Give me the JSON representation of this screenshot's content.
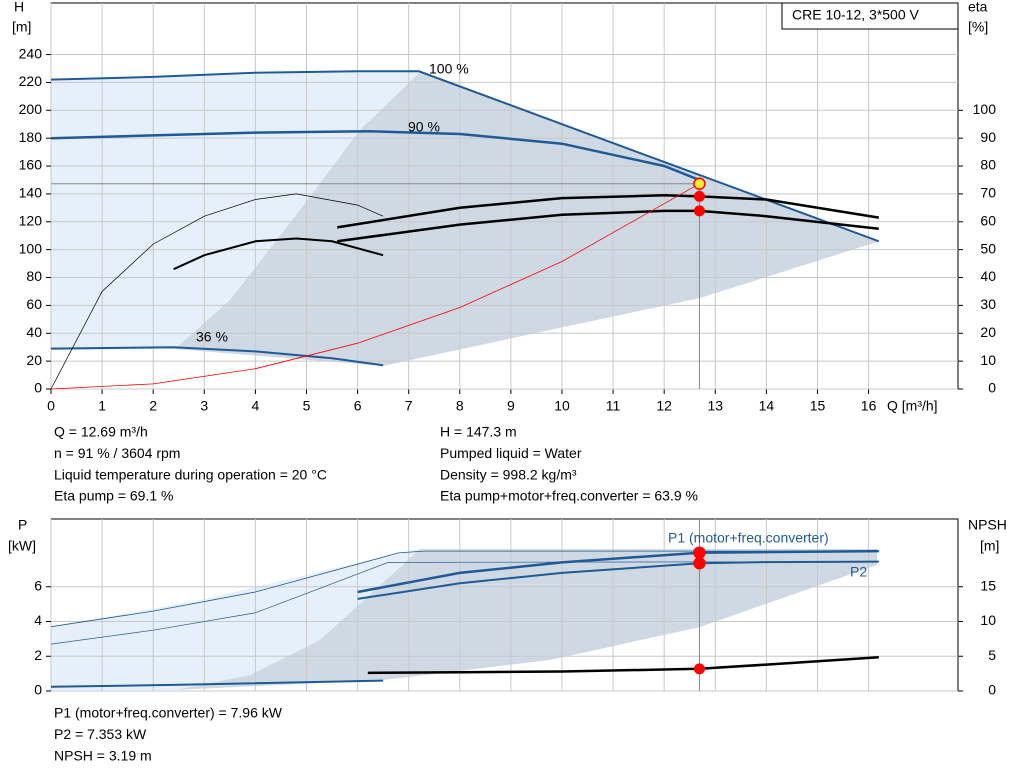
{
  "chart_data": [
    {
      "type": "line",
      "title": "CRE 10-12, 3*500 V",
      "y_label": "H",
      "y_unit": "[m]",
      "y2_label": "eta",
      "y2_unit": "[%]",
      "x_label": "Q [m³/h]",
      "xlim": [
        0,
        17.75
      ],
      "ylim": [
        0,
        277
      ],
      "y2lim": [
        0,
        138.5
      ],
      "xticks": [
        0,
        1,
        2,
        3,
        4,
        5,
        6,
        7,
        8,
        9,
        10,
        11,
        12,
        13,
        14,
        15,
        16
      ],
      "yticks": [
        0,
        20,
        40,
        60,
        80,
        100,
        120,
        140,
        160,
        180,
        200,
        220,
        240
      ],
      "y2ticks": [
        0,
        10,
        20,
        30,
        40,
        50,
        60,
        70,
        80,
        90,
        100
      ],
      "grid": true,
      "series": [
        {
          "name": "100 %",
          "color": "#1f5a96",
          "width": 2,
          "x": [
            0,
            2,
            4,
            6,
            7.2,
            16.2
          ],
          "values": [
            222,
            224,
            227,
            228,
            228,
            106
          ]
        },
        {
          "name": "90 %",
          "color": "#1f5a96",
          "width": 2.5,
          "x": [
            0,
            2,
            4,
            6.2,
            8,
            10,
            12,
            12.69
          ],
          "values": [
            180,
            182,
            184,
            185,
            183,
            176,
            160,
            150
          ]
        },
        {
          "name": "36 %",
          "color": "#1f5a96",
          "width": 2,
          "x": [
            0,
            2.4,
            4,
            5.5,
            6.5
          ],
          "values": [
            29,
            30,
            27,
            22,
            17
          ]
        },
        {
          "color": "#000000",
          "width": 2.5,
          "axis": "y2",
          "x": [
            5.6,
            8,
            10,
            12,
            12.69,
            14,
            16.2
          ],
          "values": [
            58,
            65,
            68.5,
            69.5,
            69.1,
            68,
            61.5
          ]
        },
        {
          "color": "#000000",
          "width": 2.5,
          "axis": "y2",
          "x": [
            5.6,
            8,
            10,
            12,
            12.69,
            14,
            16.2
          ],
          "values": [
            53,
            59,
            62.5,
            63.9,
            63.9,
            62,
            57.5
          ]
        },
        {
          "color": "#000000",
          "width": 0.7,
          "axis": "y2",
          "x": [
            0,
            1,
            2,
            3,
            4,
            4.8,
            6,
            6.5
          ],
          "values": [
            0,
            35,
            52,
            62,
            68,
            70,
            66,
            62
          ]
        },
        {
          "color": "#000000",
          "width": 2,
          "axis": "y2",
          "x": [
            2.4,
            3,
            4,
            4.8,
            5.5,
            6.5
          ],
          "values": [
            43,
            48,
            53,
            54,
            53,
            48
          ]
        },
        {
          "color": "#ff0000",
          "width": 0.8,
          "x": [
            0,
            2,
            4,
            6,
            8,
            10,
            12.69
          ],
          "values": [
            0,
            3.66,
            14.6,
            32.9,
            58.5,
            91.5,
            147.3
          ]
        }
      ],
      "duty_point": {
        "x": 12.69,
        "values": [
          147.3
        ],
        "y2_values": [
          69.1,
          63.9
        ]
      },
      "annotations": [
        "Q = 12.69 m³/h",
        "n = 91 % / 3604 rpm",
        "Liquid temperature during operation = 20 °C",
        "Eta pump = 69.1 %"
      ],
      "annotations_right": [
        "H = 147.3 m",
        "Pumped liquid = Water",
        "Density = 998.2 kg/m³",
        "Eta pump+motor+freq.converter = 63.9 %"
      ]
    },
    {
      "type": "line",
      "y_label": "P",
      "y_unit": "[kW]",
      "y2_label": "NPSH",
      "y2_unit": "[m]",
      "xlim": [
        0,
        17.75
      ],
      "ylim": [
        0,
        9.9
      ],
      "y2lim": [
        0,
        24.75
      ],
      "yticks": [
        0,
        2,
        4,
        6
      ],
      "y2ticks": [
        0,
        5,
        10,
        15
      ],
      "grid": true,
      "series": [
        {
          "name": "P1 (motor+freq.converter)",
          "color": "#1f5a96",
          "width": 2.5,
          "x": [
            6,
            8,
            10,
            12.69,
            16.2
          ],
          "values": [
            5.7,
            6.8,
            7.4,
            7.96,
            8.05
          ]
        },
        {
          "color": "#1f5a96",
          "width": 0.8,
          "x": [
            0,
            2,
            4,
            6.8,
            7.3,
            16.2
          ],
          "values": [
            3.7,
            4.6,
            5.7,
            7.95,
            8.05,
            8.05
          ]
        },
        {
          "name": "P2",
          "color": "#1f5a96",
          "width": 2,
          "x": [
            6,
            8,
            10,
            12.69,
            14,
            16.2
          ],
          "values": [
            5.3,
            6.2,
            6.8,
            7.353,
            7.42,
            7.45
          ]
        },
        {
          "color": "#1f5a96",
          "width": 0.7,
          "x": [
            0,
            2,
            4,
            6.6,
            16.2
          ],
          "values": [
            2.7,
            3.5,
            4.5,
            7.4,
            7.45
          ]
        },
        {
          "color": "#1f5a96",
          "width": 2,
          "x": [
            0,
            2.4,
            6.5
          ],
          "values": [
            0.25,
            0.35,
            0.6
          ]
        },
        {
          "color": "#000000",
          "width": 2.5,
          "axis": "y2",
          "x": [
            6.2,
            8,
            10,
            12.69,
            14,
            16.2
          ],
          "values": [
            2.6,
            2.7,
            2.8,
            3.19,
            3.8,
            4.86
          ]
        }
      ],
      "duty_point": {
        "x": 12.69,
        "values": [
          7.96,
          7.353
        ],
        "y2_values": [
          3.19
        ]
      },
      "annotations": [
        "P1 (motor+freq.converter) = 7.96 kW",
        "P2 = 7.353 kW",
        "NPSH = 3.19 m"
      ]
    }
  ]
}
